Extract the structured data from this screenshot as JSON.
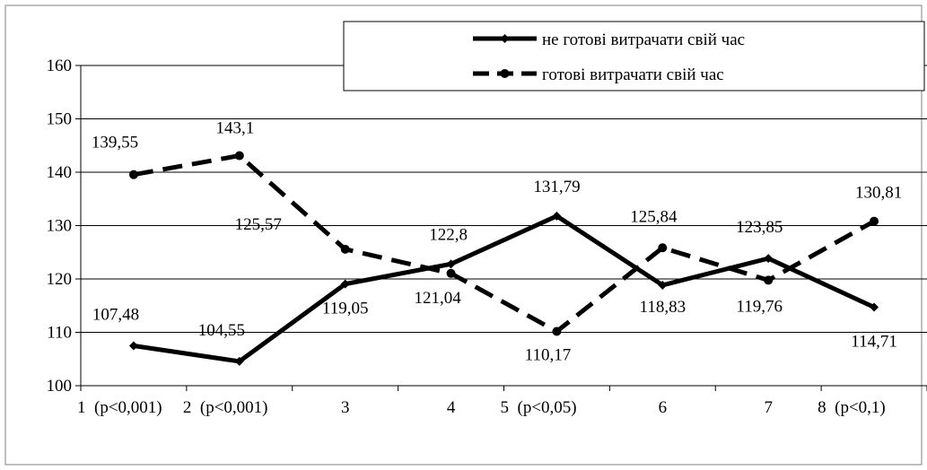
{
  "chart_data": {
    "type": "line",
    "title": "",
    "xlabel": "",
    "ylabel": "",
    "categories": [
      "1  (p<0,001)",
      "2  (p<0,001)",
      "3",
      "4",
      "5  (p<0,05)",
      "6",
      "7",
      "8  (p<0,1)"
    ],
    "y_ticks": [
      "100",
      "110",
      "120",
      "130",
      "140",
      "150",
      "160"
    ],
    "ylim": [
      100,
      160
    ],
    "grid": "horizontal",
    "legend_position": "top-right",
    "series": [
      {
        "name": "не готові витрачати свій час",
        "style": "solid",
        "marker": "diamond",
        "color": "#000000",
        "values": [
          107.48,
          104.55,
          119.05,
          122.8,
          131.79,
          118.83,
          123.85,
          114.71
        ],
        "labels": [
          "107,48",
          "104,55",
          "119,05",
          "122,8",
          "131,79",
          "118,83",
          "123,85",
          "114,71"
        ]
      },
      {
        "name": "готові витрачати свій час",
        "style": "dashed",
        "marker": "circle",
        "color": "#000000",
        "values": [
          139.55,
          143.1,
          125.57,
          121.04,
          110.17,
          125.84,
          119.76,
          130.81
        ],
        "labels": [
          "139,55",
          "143,1",
          "125,57",
          "121,04",
          "110,17",
          "125,84",
          "119,76",
          "130,81"
        ]
      }
    ]
  }
}
